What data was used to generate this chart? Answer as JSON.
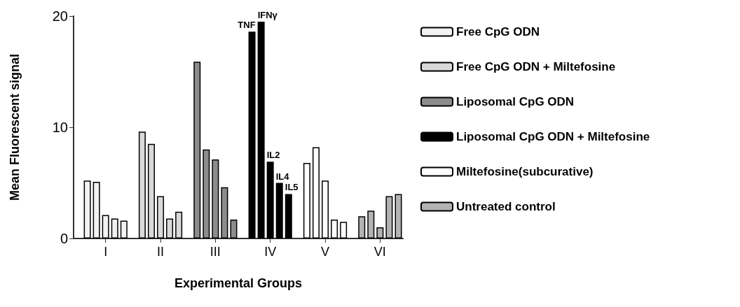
{
  "chart_data": {
    "type": "bar",
    "xlabel": "Experimental Groups",
    "ylabel": "Mean Fluorescent signal",
    "categories": [
      null,
      null,
      null,
      "I",
      null,
      null,
      null,
      null,
      null,
      "II",
      null,
      null,
      null,
      null,
      null,
      "III",
      null,
      null,
      null,
      null,
      null,
      "IV",
      null,
      null,
      null,
      null,
      null,
      "V",
      null,
      null,
      null,
      null,
      null,
      "VI",
      null,
      null
    ],
    "ylim": [
      0,
      20
    ],
    "yticks": [
      0,
      10,
      20
    ],
    "grid": false,
    "legend": "right",
    "series": [
      {
        "name": "Free CpG ODN",
        "color": "#f2f2f2",
        "values": [
          null,
          5.2,
          5.1,
          2.1,
          1.8,
          1.6,
          null,
          null,
          null,
          null,
          null,
          null,
          null,
          null,
          null,
          null,
          null,
          null,
          null,
          null,
          null,
          null,
          null,
          null,
          null,
          null,
          null,
          null,
          null,
          null,
          null,
          null,
          null,
          null,
          null,
          null
        ]
      },
      {
        "name": "Free CpG ODN + Miltefosine",
        "color": "#d9d9d9",
        "values": [
          null,
          null,
          null,
          null,
          null,
          null,
          null,
          9.6,
          8.5,
          3.8,
          1.8,
          2.4,
          null,
          null,
          null,
          null,
          null,
          null,
          null,
          null,
          null,
          null,
          null,
          null,
          null,
          null,
          null,
          null,
          null,
          null,
          null,
          null,
          null,
          null,
          null,
          null
        ]
      },
      {
        "name": "Liposomal CpG ODN",
        "color": "#8c8c8c",
        "values": [
          null,
          null,
          null,
          null,
          null,
          null,
          null,
          null,
          null,
          null,
          null,
          null,
          null,
          15.9,
          8.0,
          7.1,
          4.6,
          1.7,
          null,
          null,
          null,
          null,
          null,
          null,
          null,
          null,
          null,
          null,
          null,
          null,
          null,
          null,
          null,
          null,
          null,
          null
        ]
      },
      {
        "name": "Liposomal CpG ODN + Miltefosine",
        "color": "#000000",
        "values": [
          null,
          null,
          null,
          null,
          null,
          null,
          null,
          null,
          null,
          null,
          null,
          null,
          null,
          null,
          null,
          null,
          null,
          null,
          null,
          18.6,
          19.5,
          6.9,
          5.0,
          4.0,
          null,
          null,
          null,
          null,
          null,
          null,
          null,
          null,
          null,
          null,
          null,
          null
        ]
      },
      {
        "name": "Miltefosine(subcurative)",
        "color": "#ffffff",
        "values": [
          null,
          null,
          null,
          null,
          null,
          null,
          null,
          null,
          null,
          null,
          null,
          null,
          null,
          null,
          null,
          null,
          null,
          null,
          null,
          null,
          null,
          null,
          null,
          null,
          null,
          6.8,
          8.2,
          5.2,
          1.7,
          1.5,
          null,
          null,
          null,
          null,
          null,
          null
        ]
      },
      {
        "name": "Untreated control",
        "color": "#b3b3b3",
        "values": [
          null,
          null,
          null,
          null,
          null,
          null,
          null,
          null,
          null,
          null,
          null,
          null,
          null,
          null,
          null,
          null,
          null,
          null,
          null,
          null,
          null,
          null,
          null,
          null,
          null,
          null,
          null,
          null,
          null,
          null,
          null,
          2.0,
          2.5,
          1.0,
          3.8,
          4.0
        ]
      }
    ],
    "annotations": [
      {
        "text": "TNF",
        "y": 18.6
      },
      {
        "text": "IFNγ",
        "y": 19.5
      },
      {
        "text": "IL2",
        "y": 6.9
      },
      {
        "text": "IL4",
        "y": 5.0
      },
      {
        "text": "IL5",
        "y": 4.0
      }
    ]
  }
}
